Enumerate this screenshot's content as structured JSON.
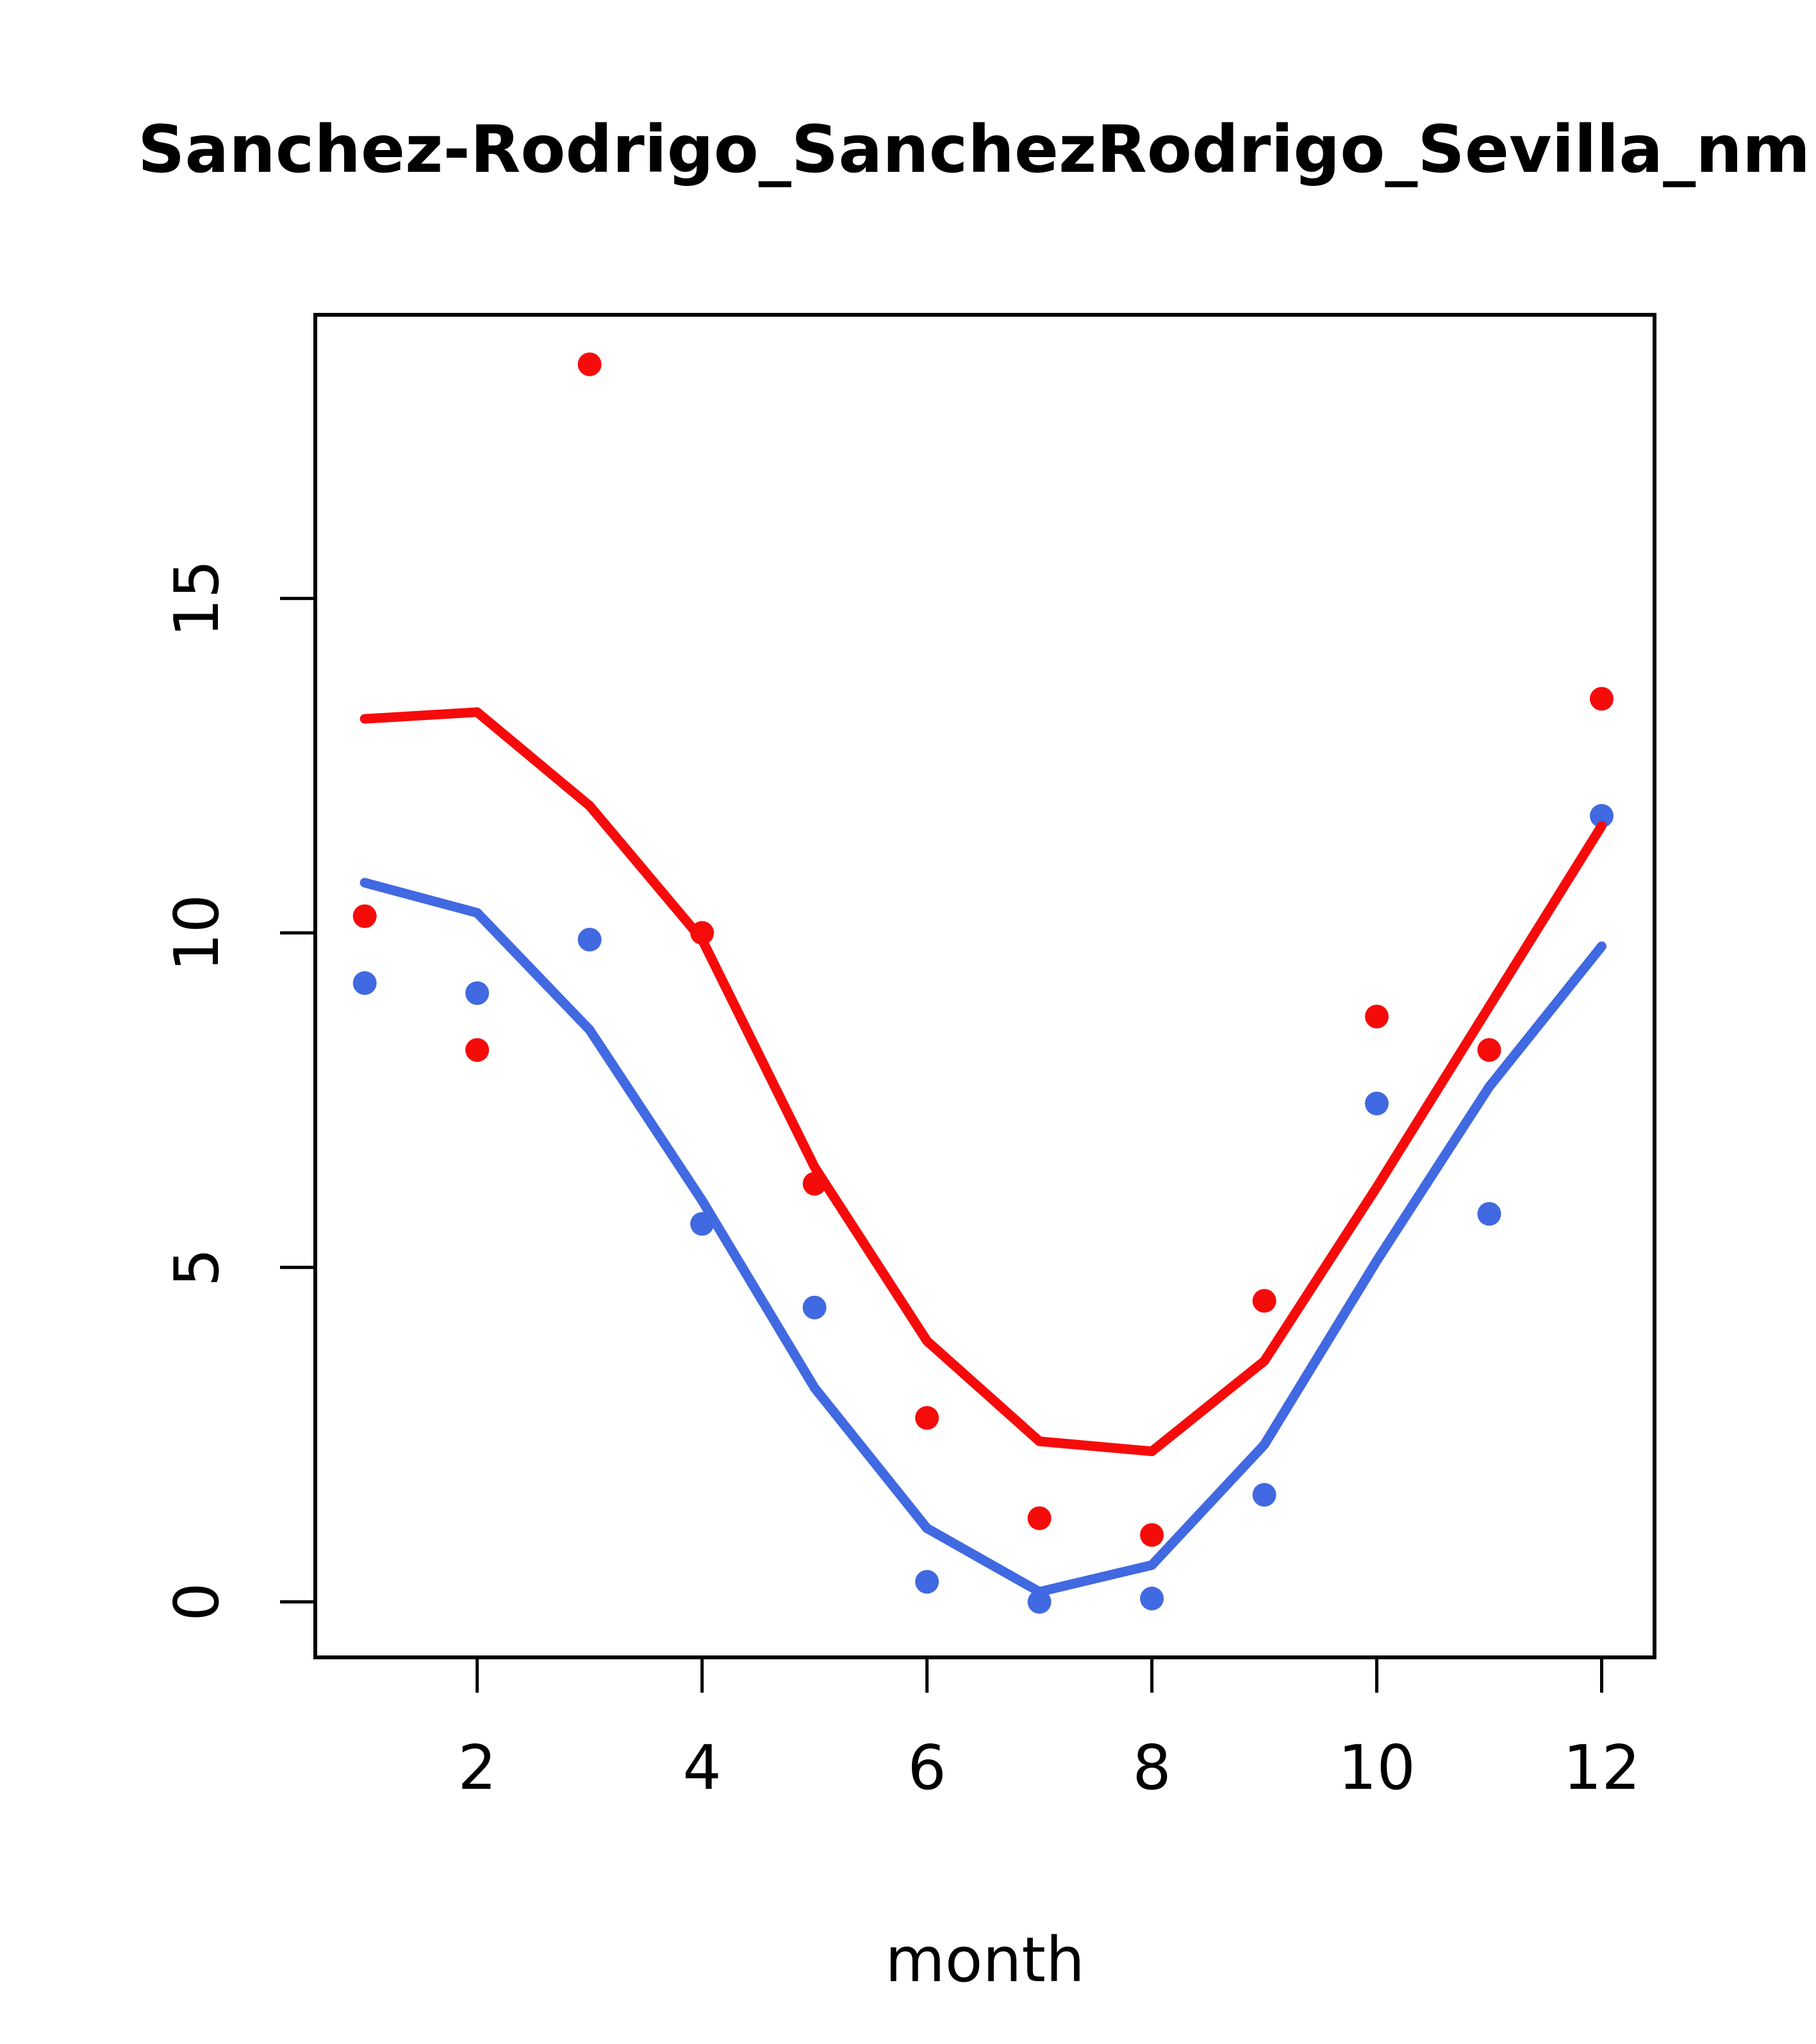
{
  "chart_data": {
    "type": "scatter",
    "title": "Sanchez-Rodrigo_SanchezRodrigo_Sevilla_nm",
    "xlabel": "month",
    "ylabel": "",
    "x": [
      1,
      2,
      3,
      4,
      5,
      6,
      7,
      8,
      9,
      10,
      11,
      12
    ],
    "x_ticks": [
      2,
      4,
      6,
      8,
      10,
      12
    ],
    "y_ticks": [
      0,
      5,
      10,
      15
    ],
    "xlim": [
      0.56,
      12.47
    ],
    "ylim": [
      -0.83,
      19.24
    ],
    "grid": false,
    "legend": "none",
    "colors": {
      "red": "#f60b0b",
      "blue": "#4169e1",
      "axis": "#000000"
    },
    "series": [
      {
        "name": "red-points",
        "type": "points",
        "color": "#f60b0b",
        "values": [
          10.25,
          8.25,
          18.5,
          10.0,
          6.25,
          2.75,
          1.25,
          1.0,
          4.5,
          8.75,
          8.25,
          13.5
        ]
      },
      {
        "name": "blue-points",
        "type": "points",
        "color": "#4169e1",
        "values": [
          9.25,
          9.1,
          9.9,
          5.65,
          4.4,
          0.3,
          0.0,
          0.05,
          1.6,
          7.45,
          5.8,
          11.75
        ]
      },
      {
        "name": "red-line",
        "type": "line",
        "color": "#f60b0b",
        "values": [
          13.2,
          13.3,
          11.9,
          9.9,
          6.5,
          3.9,
          2.4,
          2.25,
          3.6,
          6.2,
          8.9,
          11.6
        ]
      },
      {
        "name": "blue-line",
        "type": "line",
        "color": "#4169e1",
        "values": [
          10.75,
          10.3,
          8.55,
          6.0,
          3.2,
          1.1,
          0.15,
          0.55,
          2.35,
          5.1,
          7.7,
          9.8
        ]
      }
    ]
  }
}
